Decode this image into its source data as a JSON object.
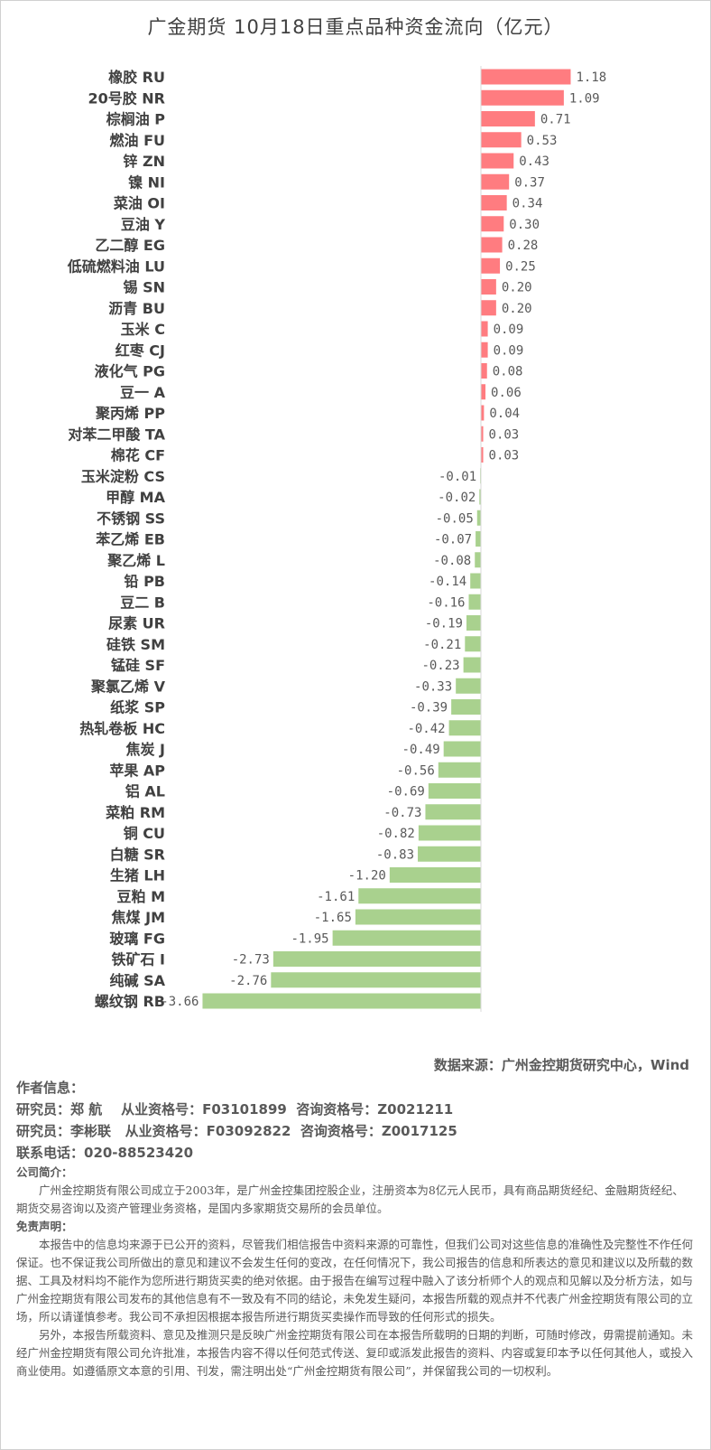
{
  "chart_data": {
    "type": "bar",
    "orientation": "horizontal",
    "title": "广金期货 10月18日重点品种资金流向（亿元）",
    "categories": [
      "橡胶 RU",
      "20号胶 NR",
      "棕榈油 P",
      "燃油 FU",
      "锌 ZN",
      "镍 NI",
      "菜油 OI",
      "豆油 Y",
      "乙二醇 EG",
      "低硫燃料油 LU",
      "锡 SN",
      "沥青 BU",
      "玉米 C",
      "红枣 CJ",
      "液化气 PG",
      "豆一 A",
      "聚丙烯 PP",
      "对苯二甲酸 TA",
      "棉花 CF",
      "玉米淀粉 CS",
      "甲醇 MA",
      "不锈钢 SS",
      "苯乙烯 EB",
      "聚乙烯 L",
      "铅 PB",
      "豆二 B",
      "尿素 UR",
      "硅铁 SM",
      "锰硅 SF",
      "聚氯乙烯 V",
      "纸浆 SP",
      "热轧卷板 HC",
      "焦炭 J",
      "苹果 AP",
      "铝 AL",
      "菜粕 RM",
      "铜 CU",
      "白糖 SR",
      "生猪 LH",
      "豆粕 M",
      "焦煤 JM",
      "玻璃 FG",
      "铁矿石 I",
      "纯碱 SA",
      "螺纹钢 RB"
    ],
    "values": [
      1.18,
      1.09,
      0.71,
      0.53,
      0.43,
      0.37,
      0.34,
      0.3,
      0.28,
      0.25,
      0.2,
      0.2,
      0.09,
      0.09,
      0.08,
      0.06,
      0.04,
      0.03,
      0.03,
      -0.01,
      -0.02,
      -0.05,
      -0.07,
      -0.08,
      -0.14,
      -0.16,
      -0.19,
      -0.21,
      -0.23,
      -0.33,
      -0.39,
      -0.42,
      -0.49,
      -0.56,
      -0.69,
      -0.73,
      -0.82,
      -0.83,
      -1.2,
      -1.61,
      -1.65,
      -1.95,
      -2.73,
      -2.76,
      -3.66
    ],
    "xlim": [
      -3.66,
      1.18
    ],
    "grid": false,
    "colors": {
      "positive": "#ff7c80",
      "negative": "#a9d18e"
    }
  },
  "source": "数据来源：广州金控期货研究中心，Wind",
  "author": {
    "heading": "作者信息：",
    "lines": [
      "研究员：郑 航    从业资格号：F03101899  咨询资格号：Z0021211",
      "研究员：李彬联   从业资格号：F03092822  咨询资格号：Z0017125",
      "联系电话：020-88523420"
    ]
  },
  "company": {
    "heading": "公司简介：",
    "text": "广州金控期货有限公司成立于2003年，是广州金控集团控股企业，注册资本为8亿元人民币，具有商品期货经纪、金融期货经纪、期货交易咨询以及资产管理业务资格，是国内多家期货交易所的会员单位。"
  },
  "disclaimer": {
    "heading": "免责声明：",
    "p1": "本报告中的信息均来源于已公开的资料，尽管我们相信报告中资料来源的可靠性，但我们公司对这些信息的准确性及完整性不作任何保证。也不保证我公司所做出的意见和建议不会发生任何的变改，在任何情况下，我公司报告的信息和所表达的意见和建议以及所载的数据、工具及材料均不能作为您所进行期货买卖的绝对依据。由于报告在编写过程中融入了该分析师个人的观点和见解以及分析方法，如与广州金控期货有限公司发布的其他信息有不一致及有不同的结论，未免发生疑问，本报告所载的观点并不代表广州金控期货有限公司的立场，所以请谨慎参考。我公司不承担因根据本报告所进行期货买卖操作而导致的任何形式的损失。",
    "p2": "另外，本报告所载资料、意见及推测只是反映广州金控期货有限公司在本报告所载明的日期的判断，可随时修改，毋需提前通知。未经广州金控期货有限公司允许批准，本报告内容不得以任何范式传送、复印或派发此报告的资料、内容或复印本予以任何其他人，或投入商业使用。如遵循原文本意的引用、刊发，需注明出处“广州金控期货有限公司”，并保留我公司的一切权利。"
  }
}
